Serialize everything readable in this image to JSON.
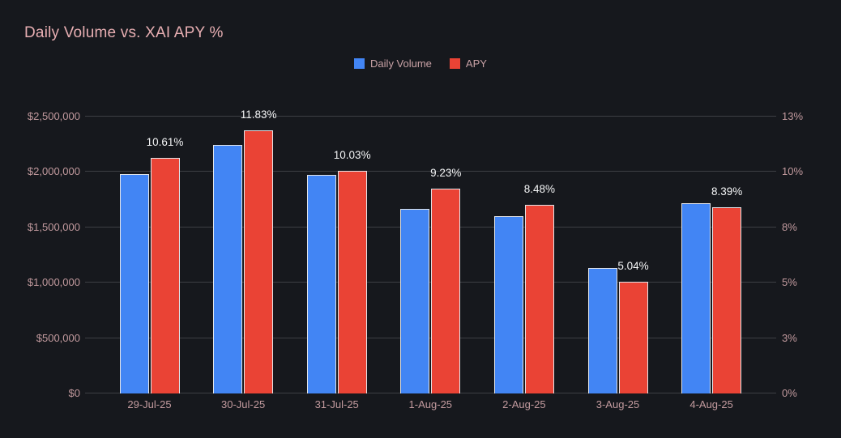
{
  "title": "Daily Volume vs. XAI APY %",
  "legend": {
    "items": [
      {
        "label": "Daily Volume",
        "color": "#4285f4"
      },
      {
        "label": "APY",
        "color": "#ea4335"
      }
    ]
  },
  "chart_data": {
    "type": "bar",
    "title": "Daily Volume vs. XAI APY %",
    "categories": [
      "29-Jul-25",
      "30-Jul-25",
      "31-Jul-25",
      "1-Aug-25",
      "2-Aug-25",
      "3-Aug-25",
      "4-Aug-25"
    ],
    "series": [
      {
        "name": "Daily Volume",
        "axis": "left",
        "color": "#4285f4",
        "values": [
          1975000,
          2235000,
          1965000,
          1660000,
          1600000,
          1130000,
          1715000
        ]
      },
      {
        "name": "APY",
        "axis": "right",
        "color": "#ea4335",
        "values": [
          10.61,
          11.83,
          10.03,
          9.23,
          8.48,
          5.04,
          8.39
        ],
        "data_labels": [
          "10.61%",
          "11.83%",
          "10.03%",
          "9.23%",
          "8.48%",
          "5.04%",
          "8.39%"
        ]
      }
    ],
    "left_axis": {
      "min": 0,
      "max": 2500000,
      "tick_labels": [
        "$2,500,000",
        "$2,000,000",
        "$1,500,000",
        "$1,000,000",
        "$500,000",
        "$0"
      ],
      "tick_values": [
        2500000,
        2000000,
        1500000,
        1000000,
        500000,
        0
      ]
    },
    "right_axis": {
      "min": 0,
      "max": 12.5,
      "tick_labels": [
        "13%",
        "10%",
        "8%",
        "5%",
        "3%",
        "0%"
      ],
      "tick_values": [
        12.5,
        10,
        7.5,
        5,
        2.5,
        0
      ]
    },
    "grid": "horizontal",
    "legend_position": "top-center"
  },
  "theme": {
    "background": "#16181d",
    "title_color": "#e7aeb2",
    "tick_color": "#c29a9e",
    "grid_color": "#3d3f44",
    "bar_stroke": "#e2e4e8",
    "data_label_color": "#f4f5f6",
    "volume_color": "#4285f4",
    "apy_color": "#ea4335"
  }
}
